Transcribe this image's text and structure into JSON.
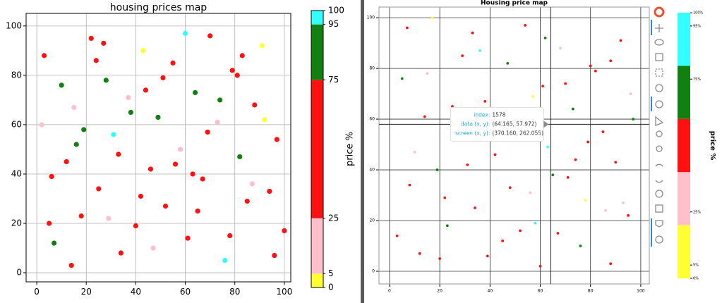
{
  "chart_data": [
    {
      "type": "scatter",
      "title": "housing prices map",
      "x": [
        3,
        7,
        12,
        15,
        18,
        22,
        25,
        28,
        31,
        34,
        37,
        40,
        43,
        46,
        49,
        52,
        55,
        58,
        61,
        64,
        67,
        70,
        73,
        76,
        79,
        82,
        85,
        88,
        91,
        94,
        97,
        100,
        2,
        6,
        10,
        14,
        19,
        24,
        29,
        33,
        38,
        42,
        47,
        51,
        56,
        60,
        65,
        69,
        74,
        78,
        83,
        87,
        92,
        96,
        5,
        16,
        27,
        44,
        63,
        81
      ],
      "y": [
        88,
        12,
        45,
        67,
        23,
        95,
        34,
        78,
        56,
        8,
        71,
        19,
        90,
        42,
        63,
        27,
        85,
        50,
        14,
        73,
        38,
        96,
        61,
        5,
        82,
        47,
        29,
        68,
        92,
        33,
        54,
        17,
        60,
        39,
        76,
        3,
        58,
        86,
        22,
        48,
        65,
        31,
        10,
        79,
        44,
        97,
        25,
        57,
        70,
        15,
        88,
        36,
        62,
        7,
        20,
        52,
        93,
        74,
        40,
        80
      ],
      "price": [
        45,
        82,
        60,
        12,
        70,
        30,
        55,
        88,
        97,
        40,
        18,
        65,
        2,
        50,
        85,
        33,
        72,
        20,
        58,
        90,
        47,
        62,
        15,
        99,
        68,
        80,
        38,
        52,
        3,
        74,
        28,
        61,
        8,
        43,
        77,
        35,
        92,
        56,
        22,
        66,
        87,
        49,
        14,
        71,
        59,
        96,
        26,
        53,
        83,
        41,
        64,
        17,
        4,
        69,
        57,
        79,
        44,
        31,
        63,
        50
      ],
      "xlim": [
        -4.3,
        102.6
      ],
      "ylim": [
        -3.7,
        105.1
      ],
      "xticks": [
        0,
        20,
        40,
        60,
        80,
        100
      ],
      "yticks": [
        0,
        20,
        40,
        60,
        80,
        100
      ],
      "grid": true,
      "colorbar": {
        "label": "price %",
        "spacing": "proportional",
        "bounds": [
          0,
          5,
          25,
          75,
          95,
          100
        ],
        "colors": [
          "#ffff33",
          "#ffc0cb",
          "#ff1111",
          "#118011",
          "#33ffff"
        ],
        "ticks": [
          0,
          5,
          25,
          75,
          95,
          100
        ]
      }
    },
    {
      "type": "scatter",
      "title": "Housing price map",
      "x": [
        88,
        12,
        45,
        67,
        23,
        95,
        34,
        78,
        56,
        8,
        71,
        19,
        90,
        42,
        63,
        27,
        85,
        50,
        14,
        73,
        38,
        96,
        61,
        5,
        82,
        47,
        29,
        68,
        92,
        33,
        54,
        17,
        60,
        39,
        76,
        3,
        58,
        86,
        22,
        48,
        65,
        31,
        10,
        79,
        44,
        97,
        25,
        57,
        70,
        15,
        88,
        36,
        62,
        7,
        20,
        52,
        93,
        74,
        40,
        80
      ],
      "y": [
        3,
        7,
        12,
        15,
        18,
        22,
        25,
        28,
        31,
        34,
        37,
        40,
        43,
        46,
        49,
        52,
        55,
        58,
        61,
        64,
        67,
        70,
        73,
        76,
        79,
        82,
        85,
        88,
        91,
        94,
        97,
        100,
        2,
        6,
        10,
        14,
        19,
        24,
        29,
        33,
        38,
        42,
        47,
        51,
        56,
        60,
        65,
        69,
        74,
        78,
        83,
        87,
        92,
        96,
        5,
        16,
        27,
        44,
        63,
        81
      ],
      "price": [
        50,
        63,
        31,
        44,
        79,
        57,
        69,
        4,
        17,
        64,
        41,
        83,
        53,
        26,
        96,
        59,
        71,
        14,
        49,
        87,
        66,
        22,
        56,
        92,
        35,
        77,
        43,
        8,
        61,
        28,
        74,
        3,
        52,
        38,
        80,
        68,
        99,
        15,
        62,
        47,
        90,
        58,
        20,
        72,
        33,
        85,
        50,
        2,
        65,
        18,
        40,
        97,
        88,
        55,
        30,
        70,
        12,
        60,
        82,
        45
      ],
      "xlim": [
        -4.2,
        103.4
      ],
      "ylim": [
        -5,
        104.2
      ],
      "xticks": [
        0,
        20,
        40,
        60,
        80,
        100
      ],
      "yticks": [
        0,
        20,
        40,
        60,
        80,
        100
      ],
      "grid": true,
      "hover": {
        "index_label": "index:",
        "index": 1578,
        "data_label": "data (x, y):",
        "data_value": "(64.165, 57.972)",
        "screen_label": "screen (x, y):",
        "screen_value": "(370.160, 262.055)",
        "x": 64.165,
        "y": 57.972
      },
      "colorbar": {
        "label": "price %",
        "spacing": "uniform",
        "bounds": [
          0,
          5,
          25,
          75,
          95,
          100
        ],
        "colors": [
          "#ffff33",
          "#ffc0cb",
          "#ff1111",
          "#118011",
          "#33ffff"
        ],
        "ticks": [
          {
            "value": 0,
            "label": "0%"
          },
          {
            "value": 5,
            "label": "5%"
          },
          {
            "value": 25,
            "label": "25%"
          },
          {
            "value": 75,
            "label": "75%"
          },
          {
            "value": 95,
            "label": "95%"
          },
          {
            "value": 100,
            "label": "100%"
          }
        ]
      }
    }
  ]
}
